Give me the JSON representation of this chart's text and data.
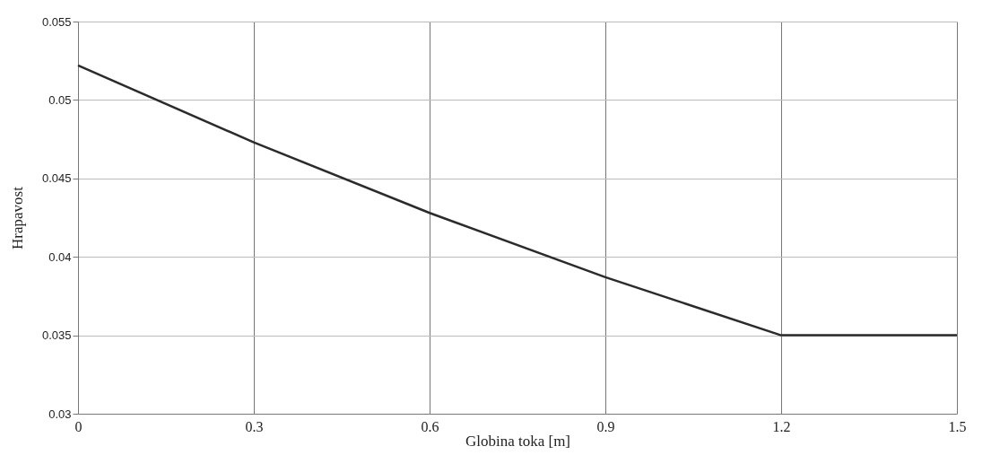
{
  "chart_data": {
    "type": "line",
    "xlabel": "Globina toka [m]",
    "ylabel": "Hrapavost",
    "x": [
      0,
      0.3,
      0.6,
      0.9,
      1.2,
      1.5
    ],
    "series": [
      {
        "color": "#2b2b2b",
        "values": [
          0.0522,
          0.0473,
          0.0428,
          0.0387,
          0.035,
          0.035
        ]
      }
    ],
    "xlim": [
      0,
      1.5
    ],
    "xticks": [
      0,
      0.3,
      0.6,
      0.9,
      1.2,
      1.5
    ],
    "ylim": [
      0.03,
      0.055
    ],
    "yticks": [
      0.03,
      0.035,
      0.04,
      0.045,
      0.05,
      0.055
    ],
    "grid": true,
    "marker": "none",
    "line_style": "solid"
  }
}
